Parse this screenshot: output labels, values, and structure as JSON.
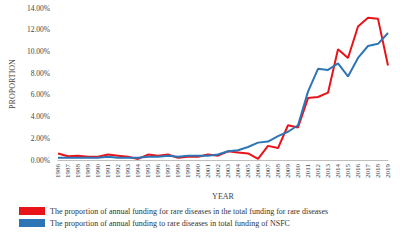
{
  "chart_data": {
    "type": "line",
    "x_label": "YEAR",
    "y_label": "PROPORTION",
    "categories": [
      "1986",
      "1987",
      "1988",
      "1989",
      "1990",
      "1991",
      "1992",
      "1993",
      "1994",
      "1995",
      "1996",
      "1997",
      "1998",
      "1999",
      "2000",
      "2001",
      "2002",
      "2003",
      "2004",
      "2005",
      "2006",
      "2007",
      "2008",
      "2009",
      "2010",
      "2011",
      "2012",
      "2013",
      "2014",
      "2015",
      "2016",
      "2017",
      "2018",
      "2019"
    ],
    "series": [
      {
        "name": "The proportion of annual funding for rare diseases in the total funding for rare diseases",
        "color": "#e8141a",
        "values": [
          0.6,
          0.35,
          0.4,
          0.3,
          0.3,
          0.5,
          0.4,
          0.3,
          0.1,
          0.5,
          0.4,
          0.5,
          0.2,
          0.3,
          0.3,
          0.5,
          0.4,
          0.8,
          0.7,
          0.6,
          0.1,
          1.3,
          1.1,
          3.2,
          3.0,
          5.7,
          5.8,
          6.2,
          10.2,
          9.4,
          12.3,
          13.1,
          13.0,
          8.7
        ]
      },
      {
        "name": "The proportion of annual funding to rare diseases in total funding of NSFC",
        "color": "#2e75b6",
        "values": [
          0.2,
          0.2,
          0.2,
          0.2,
          0.2,
          0.3,
          0.2,
          0.2,
          0.2,
          0.3,
          0.3,
          0.4,
          0.3,
          0.4,
          0.4,
          0.4,
          0.5,
          0.8,
          0.9,
          1.2,
          1.6,
          1.7,
          2.2,
          2.6,
          3.2,
          6.3,
          8.4,
          8.3,
          8.9,
          7.7,
          9.4,
          10.5,
          10.7,
          11.7
        ]
      }
    ],
    "ylim": [
      0,
      14
    ],
    "yticks": [
      {
        "value": 0,
        "label": "0.00%"
      },
      {
        "value": 2,
        "label": "2.00%"
      },
      {
        "value": 4,
        "label": "4.00%"
      },
      {
        "value": 6,
        "label": "6.00%"
      },
      {
        "value": 8,
        "label": "8.00%"
      },
      {
        "value": 10,
        "label": "10.00%"
      },
      {
        "value": 12,
        "label": "12.00%"
      },
      {
        "value": 14,
        "label": "14.00%"
      }
    ],
    "grid": false,
    "legend": "bottom"
  }
}
